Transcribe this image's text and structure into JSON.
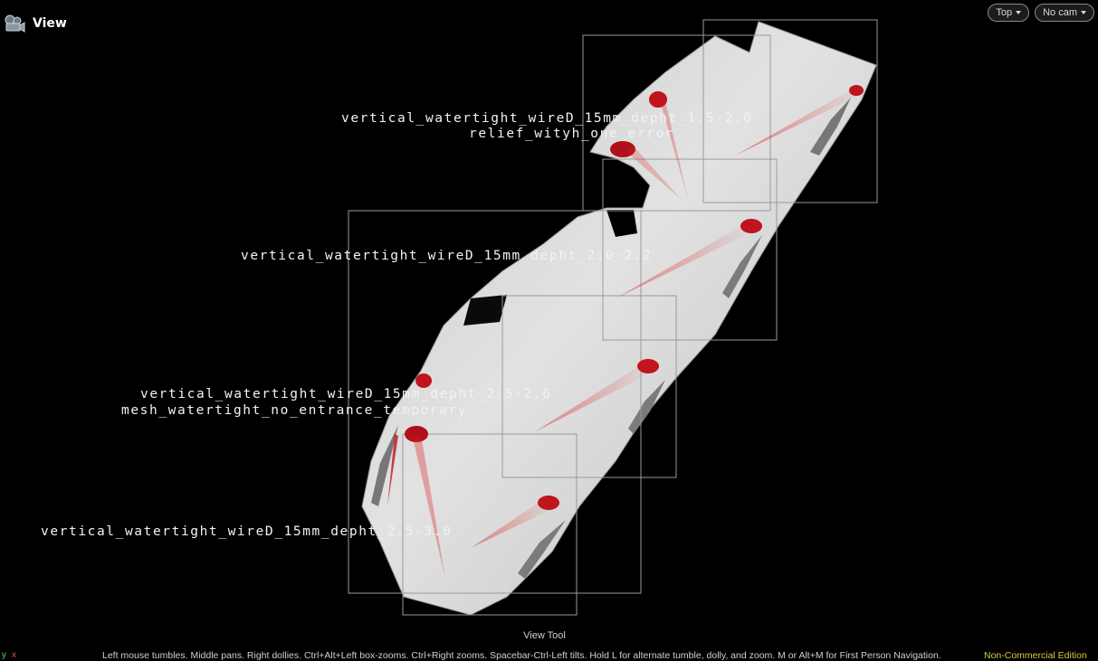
{
  "header": {
    "title": "View",
    "icon": "camera-view-icon"
  },
  "camera": {
    "view_menu": "Top",
    "cam_menu": "No cam"
  },
  "labels": {
    "d15_20_line1": "vertical_watertight_wireD_15mm_depht_1.5-2.0",
    "d15_20_line2": "relief_wityh_one_error",
    "d20_22": "vertical_watertight_wireD_15mm_depht_2.0-2.2",
    "d25_26_line1": "vertical_watertight_wireD_15mm_depht_2.5-2.6",
    "d25_26_line2": "mesh_watertight_no_entrance_temporary",
    "d25_30": "vertical_watertight_wireD_15mm_depht_2.5-3.0"
  },
  "footer": {
    "tool": "View Tool",
    "help": "Left mouse tumbles. Middle pans. Right dollies. Ctrl+Alt+Left box-zooms. Ctrl+Right zooms. Spacebar-Ctrl-Left tilts. Hold L for alternate tumble, dolly, and zoom. M or Alt+M for First Person Navigation.",
    "license": "Non-Commercial Edition",
    "axis_y": "y",
    "axis_x": "x"
  },
  "colors": {
    "background": "#000000",
    "mesh": "#d6d6d6",
    "highlight": "#c0141e",
    "license": "#d8c840"
  }
}
